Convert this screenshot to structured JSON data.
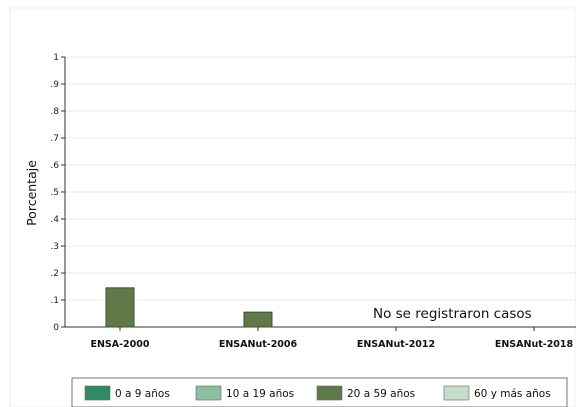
{
  "chart_data": {
    "type": "bar",
    "categories": [
      "ENSA-2000",
      "ENSANut-2006",
      "ENSANut-2012",
      "ENSANut-2018"
    ],
    "series": [
      {
        "name": "0 a 9 años",
        "color": "#2e8b63",
        "values": [
          0,
          0,
          0,
          0
        ]
      },
      {
        "name": "10 a 19 años",
        "color": "#8dbf9f",
        "values": [
          0,
          0,
          0,
          0
        ]
      },
      {
        "name": "20 a 59 años",
        "color": "#5f7a48",
        "values": [
          0.145,
          0.055,
          0,
          0
        ]
      },
      {
        "name": "60 y más años",
        "color": "#c5dccb",
        "values": [
          0,
          0,
          0,
          0
        ]
      }
    ],
    "ylabel": "Porcentaje",
    "xlabel": "",
    "ylim": [
      0,
      1
    ],
    "yticks": [
      {
        "v": 0,
        "label": "0"
      },
      {
        "v": 0.1,
        "label": ".1"
      },
      {
        "v": 0.2,
        "label": ".2"
      },
      {
        "v": 0.3,
        "label": ".3"
      },
      {
        "v": 0.4,
        "label": ".4"
      },
      {
        "v": 0.5,
        "label": ".5"
      },
      {
        "v": 0.6,
        "label": ".6"
      },
      {
        "v": 0.7,
        "label": ".7"
      },
      {
        "v": 0.8,
        "label": ".8"
      },
      {
        "v": 0.9,
        "label": ".9"
      },
      {
        "v": 1,
        "label": "1"
      }
    ],
    "annotation": "No se registraron casos",
    "grid": true,
    "legend_position": "bottom"
  }
}
